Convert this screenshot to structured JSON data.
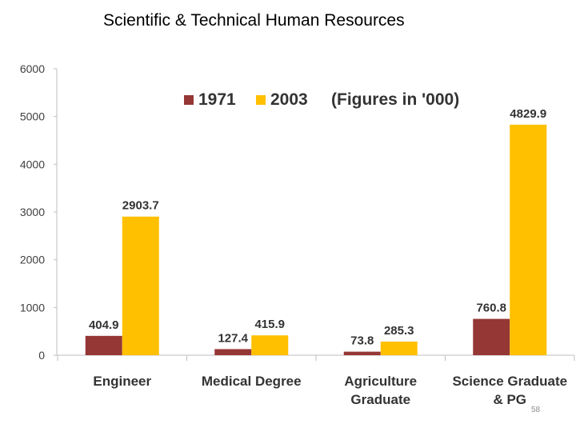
{
  "slide": {
    "title": "Scientific & Technical Human Resources",
    "page_number": "58"
  },
  "chart_data": {
    "type": "bar",
    "title": "",
    "xlabel": "",
    "ylabel": "",
    "annotation": "(Figures in '000)",
    "ylim": [
      0,
      6000
    ],
    "yticks": [
      0,
      1000,
      2000,
      3000,
      4000,
      5000,
      6000
    ],
    "legend_position": "top-center",
    "categories": [
      [
        "Engineer"
      ],
      [
        "Medical Degree"
      ],
      [
        "Agriculture",
        "Graduate"
      ],
      [
        "Science Graduate",
        "& PG"
      ]
    ],
    "series": [
      {
        "name": "1971",
        "color": "#953735",
        "values": [
          404.9,
          127.4,
          73.8,
          760.8
        ]
      },
      {
        "name": "2003",
        "color": "#FFC000",
        "values": [
          2903.7,
          415.9,
          285.3,
          4829.9
        ]
      }
    ]
  }
}
